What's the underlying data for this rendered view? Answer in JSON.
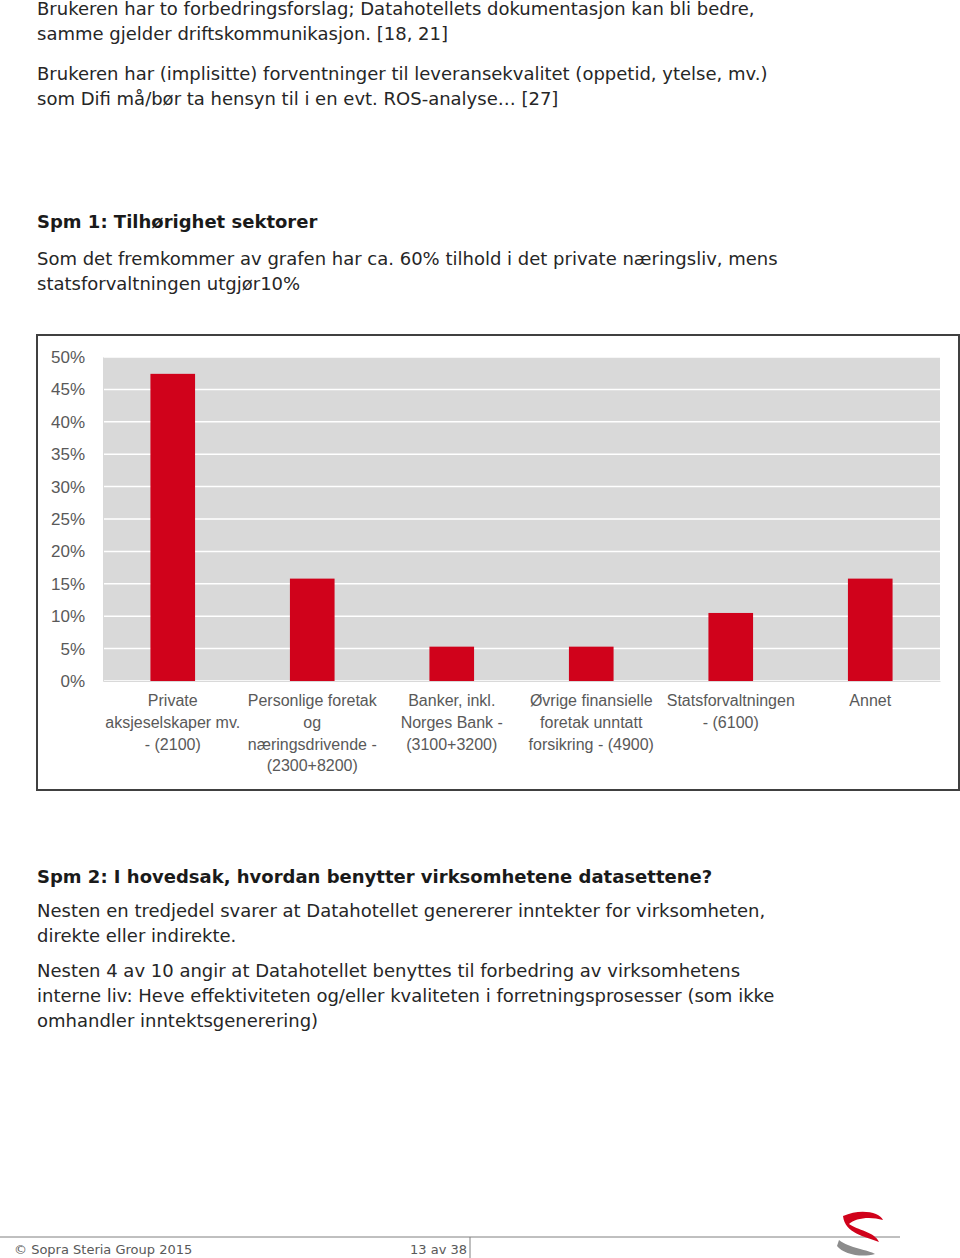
{
  "page": {
    "intro": [
      [
        "Brukeren har to forbedringsforslag; Datahotellets dokumentasjon kan bli bedre,",
        "samme gjelder driftskommunikasjon. [18, 21]"
      ],
      [
        "Brukeren har (implisitte) forventninger til leveransekvalitet (oppetid, ytelse, mv.)",
        "som Difi må/bør ta hensyn til i en evt. ROS-analyse… [27]"
      ]
    ],
    "heading_1": "Spm 1: Tilhørighet sektorer",
    "text_1": [
      "Som det fremkommer av grafen har ca. 60% tilhold i det private næringsliv, mens",
      "statsforvaltningen utgjør10%"
    ],
    "heading_2": "Spm 2: I hovedsak, hvordan benytter virksomhetene datasettene?",
    "text_2": [
      [
        "Nesten en tredjedel svarer at Datahotellet genererer inntekter for virksomheten,",
        "direkte eller indirekte."
      ],
      [
        "Nesten 4 av 10 angir at Datahotellet benyttes til forbedring av virksomhetens",
        "interne liv: Heve effektiviteten og/eller kvaliteten i forretningsprosesser (som ikke",
        "omhandler inntektsgenerering)"
      ]
    ],
    "footer": {
      "copyright": "© Sopra Steria Group 2015",
      "page_number": "13 av 38"
    }
  },
  "chart_data": {
    "type": "bar",
    "categories": [
      "Private\naksjeselskaper mv.\n- (2100)",
      "Personlige foretak\nog\nnæringsdrivende -\n(2300+8200)",
      "Banker, inkl.\nNorges Bank -\n(3100+3200)",
      "Øvrige finansielle\nforetak unntatt\nforsikring - (4900)",
      "Statsforvaltningen\n- (6100)",
      "Annet"
    ],
    "values": [
      47.4,
      15.8,
      5.3,
      5.3,
      10.5,
      15.8
    ],
    "color": "#d0021b",
    "ylim": [
      0,
      50
    ],
    "yticks": [
      {
        "value": 0,
        "label": "0%"
      },
      {
        "value": 5,
        "label": "5%"
      },
      {
        "value": 10,
        "label": "10%"
      },
      {
        "value": 15,
        "label": "15%"
      },
      {
        "value": 20,
        "label": "20%"
      },
      {
        "value": 25,
        "label": "25%"
      },
      {
        "value": 30,
        "label": "30%"
      },
      {
        "value": 35,
        "label": "35%"
      },
      {
        "value": 40,
        "label": "40%"
      },
      {
        "value": 45,
        "label": "45%"
      },
      {
        "value": 50,
        "label": "50%"
      }
    ],
    "grid": true
  }
}
